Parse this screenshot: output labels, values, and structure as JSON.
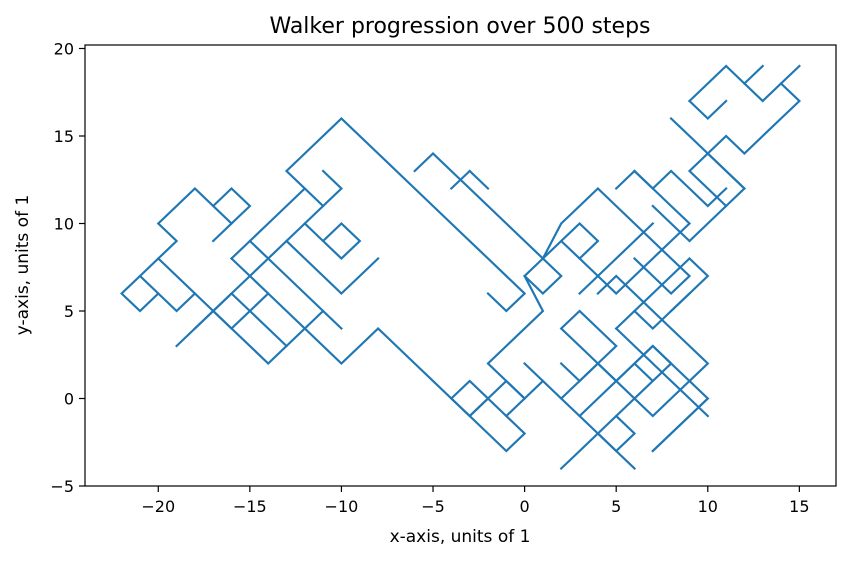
{
  "chart_data": {
    "type": "line",
    "title": "Walker progression over 500 steps",
    "xlabel": "x-axis, units of 1",
    "ylabel": "y-axis, units of 1",
    "xlim": [
      -24,
      17
    ],
    "ylim": [
      -5,
      20.2
    ],
    "xticks": [
      -20,
      -15,
      -10,
      -5,
      0,
      5,
      10,
      15
    ],
    "yticks": [
      -5,
      0,
      5,
      10,
      15,
      20
    ],
    "xtick_labels": [
      "−20",
      "−15",
      "−10",
      "−5",
      "0",
      "5",
      "10",
      "15"
    ],
    "ytick_labels": [
      "−5",
      "0",
      "5",
      "10",
      "15",
      "20"
    ],
    "grid": false,
    "line_color": "#1f77b4",
    "segments": [
      [
        [
          -22,
          6
        ],
        [
          -21,
          7
        ],
        [
          -20,
          6
        ],
        [
          -21,
          5
        ],
        [
          -22,
          6
        ]
      ],
      [
        [
          -21,
          7
        ],
        [
          -20,
          8
        ],
        [
          -18,
          6
        ],
        [
          -19,
          5
        ],
        [
          -20,
          6
        ]
      ],
      [
        [
          -20,
          8
        ],
        [
          -19,
          9
        ],
        [
          -20,
          10
        ],
        [
          -18,
          12
        ],
        [
          -16,
          10
        ],
        [
          -17,
          9
        ]
      ],
      [
        [
          -17,
          11
        ],
        [
          -16,
          12
        ],
        [
          -15,
          11
        ],
        [
          -16,
          10
        ]
      ],
      [
        [
          -18,
          6
        ],
        [
          -14,
          2
        ],
        [
          -12,
          4
        ],
        [
          -10,
          2
        ],
        [
          -9,
          3
        ],
        [
          -8,
          4
        ],
        [
          -6,
          2
        ],
        [
          -3,
          -1
        ],
        [
          -2,
          0
        ],
        [
          -1,
          -1
        ],
        [
          0,
          0
        ],
        [
          -1,
          1
        ],
        [
          -2,
          0
        ]
      ],
      [
        [
          -19,
          3
        ],
        [
          -17,
          5
        ],
        [
          -16,
          6
        ],
        [
          -15,
          7
        ],
        [
          -14,
          8
        ],
        [
          -13,
          9
        ],
        [
          -12,
          10
        ],
        [
          -11,
          11
        ]
      ],
      [
        [
          -18,
          4
        ],
        [
          -16,
          6
        ],
        [
          -15,
          5
        ],
        [
          -14,
          6
        ]
      ],
      [
        [
          -17,
          5
        ],
        [
          -16,
          4
        ],
        [
          -15,
          5
        ],
        [
          -14,
          4
        ],
        [
          -13,
          3
        ]
      ],
      [
        [
          -16,
          8
        ],
        [
          -15,
          7
        ],
        [
          -14,
          6
        ],
        [
          -13,
          5
        ],
        [
          -12,
          4
        ],
        [
          -11,
          5
        ],
        [
          -10,
          4
        ]
      ],
      [
        [
          -16,
          8
        ],
        [
          -15,
          9
        ],
        [
          -14,
          10
        ],
        [
          -13,
          11
        ],
        [
          -12,
          12
        ],
        [
          -11,
          11
        ],
        [
          -10,
          12
        ],
        [
          -11,
          13
        ]
      ],
      [
        [
          -15,
          9
        ],
        [
          -14,
          8
        ],
        [
          -13,
          7
        ],
        [
          -12,
          6
        ],
        [
          -11,
          5
        ]
      ],
      [
        [
          -13,
          9
        ],
        [
          -12,
          8
        ],
        [
          -11,
          7
        ],
        [
          -10,
          6
        ],
        [
          -9,
          7
        ],
        [
          -8,
          8
        ]
      ],
      [
        [
          -12,
          10
        ],
        [
          -11,
          9
        ],
        [
          -10,
          8
        ],
        [
          -9,
          9
        ],
        [
          -10,
          10
        ],
        [
          -11,
          9
        ]
      ],
      [
        [
          -12,
          12
        ],
        [
          -13,
          13
        ],
        [
          -12,
          14
        ],
        [
          -10,
          16
        ],
        [
          -8,
          14
        ],
        [
          -6,
          12
        ],
        [
          -5,
          11
        ],
        [
          -4,
          10
        ],
        [
          -2,
          8
        ],
        [
          0,
          6
        ],
        [
          -1,
          5
        ],
        [
          -2,
          6
        ]
      ],
      [
        [
          -6,
          13
        ],
        [
          -5,
          14
        ],
        [
          -4,
          13
        ],
        [
          -3,
          12
        ],
        [
          -2,
          11
        ],
        [
          -1,
          10
        ],
        [
          0,
          9
        ],
        [
          1,
          8
        ],
        [
          2,
          7
        ],
        [
          1,
          6
        ],
        [
          0,
          7
        ],
        [
          1,
          8
        ],
        [
          2,
          9
        ],
        [
          3,
          10
        ],
        [
          4,
          9
        ],
        [
          3,
          8
        ],
        [
          2,
          9
        ]
      ],
      [
        [
          -3,
          13
        ],
        [
          -4,
          12
        ]
      ],
      [
        [
          -3,
          13
        ],
        [
          -2,
          12
        ]
      ],
      [
        [
          0,
          7
        ],
        [
          1,
          5
        ],
        [
          -1,
          3
        ],
        [
          -2,
          2
        ],
        [
          -1,
          1
        ],
        [
          0,
          0
        ],
        [
          1,
          1
        ]
      ],
      [
        [
          -4,
          0
        ],
        [
          -3,
          1
        ],
        [
          -2,
          0
        ],
        [
          -3,
          -1
        ],
        [
          -4,
          0
        ]
      ],
      [
        [
          -3,
          -1
        ],
        [
          -2,
          -2
        ],
        [
          -1,
          -3
        ],
        [
          0,
          -2
        ],
        [
          -1,
          -1
        ]
      ],
      [
        [
          0,
          2
        ],
        [
          1,
          1
        ],
        [
          2,
          0
        ],
        [
          3,
          1
        ],
        [
          4,
          2
        ],
        [
          5,
          3
        ],
        [
          4,
          4
        ],
        [
          3,
          5
        ],
        [
          2,
          4
        ],
        [
          3,
          3
        ],
        [
          4,
          2
        ],
        [
          5,
          1
        ],
        [
          6,
          2
        ],
        [
          7,
          3
        ],
        [
          8,
          2
        ],
        [
          9,
          1
        ]
      ],
      [
        [
          1,
          8
        ],
        [
          2,
          10
        ],
        [
          3,
          11
        ],
        [
          4,
          12
        ],
        [
          5,
          11
        ],
        [
          6,
          10
        ],
        [
          7,
          9
        ],
        [
          8,
          8
        ],
        [
          9,
          7
        ],
        [
          8,
          6
        ],
        [
          7,
          7
        ],
        [
          6,
          8
        ]
      ],
      [
        [
          2,
          0
        ],
        [
          3,
          -1
        ],
        [
          4,
          0
        ],
        [
          5,
          1
        ],
        [
          4,
          2
        ],
        [
          3,
          1
        ],
        [
          2,
          2
        ]
      ],
      [
        [
          3,
          -1
        ],
        [
          4,
          -2
        ],
        [
          5,
          -3
        ],
        [
          6,
          -2
        ],
        [
          5,
          -1
        ],
        [
          4,
          -2
        ]
      ],
      [
        [
          5,
          -1
        ],
        [
          6,
          0
        ],
        [
          7,
          -1
        ],
        [
          8,
          0
        ],
        [
          9,
          1
        ],
        [
          10,
          0
        ],
        [
          9,
          -1
        ],
        [
          8,
          -2
        ],
        [
          7,
          -3
        ]
      ],
      [
        [
          3,
          8
        ],
        [
          4,
          7
        ],
        [
          5,
          6
        ],
        [
          6,
          7
        ],
        [
          7,
          8
        ],
        [
          8,
          9
        ],
        [
          9,
          10
        ],
        [
          8,
          11
        ],
        [
          7,
          12
        ],
        [
          6,
          13
        ],
        [
          5,
          12
        ]
      ],
      [
        [
          3,
          6
        ],
        [
          4,
          7
        ],
        [
          5,
          8
        ],
        [
          6,
          9
        ],
        [
          7,
          10
        ]
      ],
      [
        [
          4,
          6
        ],
        [
          5,
          7
        ],
        [
          6,
          6
        ],
        [
          7,
          5
        ],
        [
          8,
          4
        ],
        [
          9,
          3
        ],
        [
          10,
          2
        ],
        [
          9,
          1
        ]
      ],
      [
        [
          5,
          4
        ],
        [
          6,
          5
        ],
        [
          7,
          4
        ],
        [
          8,
          5
        ],
        [
          9,
          6
        ]
      ],
      [
        [
          5,
          4
        ],
        [
          6,
          3
        ],
        [
          7,
          2
        ],
        [
          8,
          1
        ],
        [
          9,
          0
        ],
        [
          10,
          -1
        ]
      ],
      [
        [
          6,
          2
        ],
        [
          7,
          1
        ],
        [
          8,
          2
        ],
        [
          7,
          3
        ],
        [
          6,
          2
        ],
        [
          5,
          1
        ],
        [
          6,
          0
        ],
        [
          7,
          1
        ]
      ],
      [
        [
          6,
          13
        ],
        [
          7,
          12
        ],
        [
          8,
          13
        ],
        [
          9,
          12
        ],
        [
          10,
          11
        ],
        [
          11,
          12
        ]
      ],
      [
        [
          6,
          5
        ],
        [
          7,
          6
        ],
        [
          8,
          7
        ],
        [
          9,
          8
        ],
        [
          10,
          7
        ],
        [
          9,
          6
        ],
        [
          8,
          5
        ]
      ],
      [
        [
          7,
          11
        ],
        [
          8,
          10
        ],
        [
          9,
          9
        ],
        [
          10,
          10
        ],
        [
          11,
          11
        ],
        [
          12,
          12
        ],
        [
          11,
          13
        ],
        [
          10,
          14
        ],
        [
          9,
          15
        ],
        [
          8,
          16
        ]
      ],
      [
        [
          9,
          17
        ],
        [
          10,
          18
        ],
        [
          11,
          19
        ],
        [
          12,
          18
        ],
        [
          13,
          17
        ],
        [
          14,
          18
        ],
        [
          15,
          17
        ],
        [
          14,
          16
        ],
        [
          13,
          15
        ],
        [
          12,
          14
        ],
        [
          11,
          15
        ],
        [
          10,
          14
        ],
        [
          9,
          13
        ],
        [
          10,
          12
        ],
        [
          11,
          11
        ]
      ],
      [
        [
          12,
          18
        ],
        [
          13,
          19
        ]
      ],
      [
        [
          14,
          18
        ],
        [
          15,
          19
        ]
      ],
      [
        [
          9,
          17
        ],
        [
          10,
          16
        ],
        [
          11,
          17
        ]
      ],
      [
        [
          2,
          -4
        ],
        [
          3,
          -3
        ],
        [
          4,
          -2
        ],
        [
          5,
          -3
        ],
        [
          6,
          -4
        ]
      ],
      [
        [
          7,
          -3
        ],
        [
          8,
          -2
        ],
        [
          9,
          -1
        ],
        [
          10,
          0
        ]
      ],
      [
        [
          10,
          14
        ],
        [
          12,
          12
        ]
      ]
    ]
  }
}
